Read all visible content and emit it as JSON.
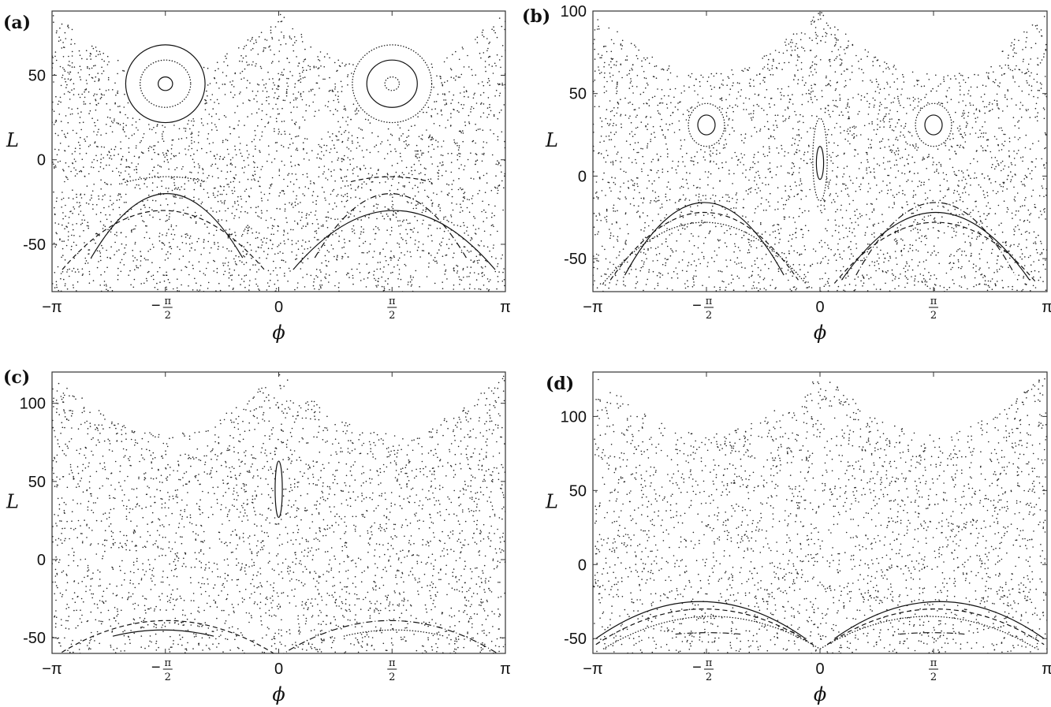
{
  "chart_data": [
    {
      "type": "scatter",
      "panel_label": "(a)",
      "xlabel": "ϕ",
      "ylabel": "L",
      "xlim": [
        -3.1416,
        3.1416
      ],
      "ylim": [
        -78,
        88
      ],
      "y_ticks": [
        -50,
        0,
        50
      ],
      "x_ticks": [
        {
          "value": -3.1416,
          "label": "−π"
        },
        {
          "value": -1.5708,
          "label": "−π/2"
        },
        {
          "value": 0,
          "label": "0"
        },
        {
          "value": 1.5708,
          "label": "π/2"
        },
        {
          "value": 3.1416,
          "label": "π"
        }
      ],
      "chaotic_dots": 3000,
      "islands": [
        {
          "cx": -1.5708,
          "cy": 45,
          "rx": 0.1,
          "ry": 4
        },
        {
          "cx": -1.5708,
          "cy": 45,
          "rx": 0.35,
          "ry": 14
        },
        {
          "cx": -1.5708,
          "cy": 45,
          "rx": 0.55,
          "ry": 23
        },
        {
          "cx": 1.5708,
          "cy": 45,
          "rx": 0.1,
          "ry": 4
        },
        {
          "cx": 1.5708,
          "cy": 45,
          "rx": 0.35,
          "ry": 14
        },
        {
          "cx": 1.5708,
          "cy": 45,
          "rx": 0.55,
          "ry": 23
        }
      ],
      "arches": [
        {
          "x1": -2.6,
          "x2": -0.5,
          "ytop": -20,
          "ybase": -58
        },
        {
          "x1": -3.0,
          "x2": -0.2,
          "ytop": -30,
          "ybase": -65
        },
        {
          "x1": -2.1,
          "x2": -1.0,
          "ytop": -10,
          "ybase": -13
        },
        {
          "x1": 0.5,
          "x2": 2.6,
          "ytop": -20,
          "ybase": -58
        },
        {
          "x1": 0.2,
          "x2": 3.0,
          "ytop": -30,
          "ybase": -65
        },
        {
          "x1": 1.0,
          "x2": 2.1,
          "ytop": -10,
          "ybase": -13
        }
      ]
    },
    {
      "type": "scatter",
      "panel_label": "(b)",
      "xlabel": "ϕ",
      "ylabel": "L",
      "xlim": [
        -3.1416,
        3.1416
      ],
      "ylim": [
        -70,
        100
      ],
      "y_ticks": [
        -50,
        0,
        50,
        100
      ],
      "x_ticks": [
        {
          "value": -3.1416,
          "label": "−π"
        },
        {
          "value": -1.5708,
          "label": "−π/2"
        },
        {
          "value": 0,
          "label": "0"
        },
        {
          "value": 1.5708,
          "label": "π/2"
        },
        {
          "value": 3.1416,
          "label": "π"
        }
      ],
      "chaotic_dots": 3000,
      "islands": [
        {
          "cx": -1.5708,
          "cy": 31,
          "rx": 0.12,
          "ry": 6
        },
        {
          "cx": -1.5708,
          "cy": 31,
          "rx": 0.25,
          "ry": 13
        },
        {
          "cx": 1.5708,
          "cy": 31,
          "rx": 0.12,
          "ry": 6
        },
        {
          "cx": 1.5708,
          "cy": 31,
          "rx": 0.25,
          "ry": 13
        },
        {
          "cx": 0,
          "cy": 8,
          "rx": 0.05,
          "ry": 10
        },
        {
          "cx": 0,
          "cy": 10,
          "rx": 0.1,
          "ry": 25
        }
      ],
      "arches": [
        {
          "x1": -2.7,
          "x2": -0.5,
          "ytop": -16,
          "ybase": -60
        },
        {
          "x1": -2.9,
          "x2": -0.3,
          "ytop": -22,
          "ybase": -63
        },
        {
          "x1": -3.0,
          "x2": -0.2,
          "ytop": -28,
          "ybase": -65
        },
        {
          "x1": 0.5,
          "x2": 2.7,
          "ytop": -16,
          "ybase": -60
        },
        {
          "x1": 0.3,
          "x2": 2.9,
          "ytop": -22,
          "ybase": -63
        },
        {
          "x1": 0.2,
          "x2": 3.0,
          "ytop": -28,
          "ybase": -65
        }
      ]
    },
    {
      "type": "scatter",
      "panel_label": "(c)",
      "xlabel": "ϕ",
      "ylabel": "L",
      "xlim": [
        -3.1416,
        3.1416
      ],
      "ylim": [
        -60,
        120
      ],
      "y_ticks": [
        -50,
        0,
        50,
        100
      ],
      "x_ticks": [
        {
          "value": -3.1416,
          "label": "−π"
        },
        {
          "value": -1.5708,
          "label": "−π/2"
        },
        {
          "value": 0,
          "label": "0"
        },
        {
          "value": 1.5708,
          "label": "π/2"
        },
        {
          "value": 3.1416,
          "label": "π"
        }
      ],
      "chaotic_dots": 3000,
      "islands": [
        {
          "cx": 0,
          "cy": 45,
          "rx": 0.05,
          "ry": 18
        },
        {
          "cx": 0,
          "cy": -30,
          "rx": 0.02,
          "ry": 1.5
        }
      ],
      "arches": [
        {
          "x1": -2.3,
          "x2": -0.9,
          "ytop": -45,
          "ybase": -49
        },
        {
          "x1": -3.1,
          "x2": 0.0,
          "ytop": -39,
          "ybase": -62
        },
        {
          "x1": 0.9,
          "x2": 2.3,
          "ytop": -45,
          "ybase": -49
        },
        {
          "x1": 0.0,
          "x2": 3.1,
          "ytop": -39,
          "ybase": -62
        }
      ]
    },
    {
      "type": "scatter",
      "panel_label": "(d)",
      "xlabel": "ϕ",
      "ylabel": "L",
      "xlim": [
        -3.1416,
        3.1416
      ],
      "ylim": [
        -60,
        130
      ],
      "y_ticks": [
        -50,
        0,
        50,
        100
      ],
      "x_ticks": [
        {
          "value": -3.1416,
          "label": "−π"
        },
        {
          "value": -1.5708,
          "label": "−π/2"
        },
        {
          "value": 0,
          "label": "0"
        },
        {
          "value": 1.5708,
          "label": "π/2"
        },
        {
          "value": 3.1416,
          "label": "π"
        }
      ],
      "chaotic_dots": 2800,
      "islands": [],
      "arches": [
        {
          "x1": -3.1,
          "x2": -0.2,
          "ytop": -25,
          "ybase": -50
        },
        {
          "x1": -3.1,
          "x2": -0.1,
          "ytop": -30,
          "ybase": -54
        },
        {
          "x1": -3.0,
          "x2": 0.0,
          "ytop": -35,
          "ybase": -57
        },
        {
          "x1": -2.0,
          "x2": -1.1,
          "ytop": -46,
          "ybase": -47
        },
        {
          "x1": 0.2,
          "x2": 3.1,
          "ytop": -25,
          "ybase": -50
        },
        {
          "x1": 0.1,
          "x2": 3.1,
          "ytop": -30,
          "ybase": -54
        },
        {
          "x1": 0.0,
          "x2": 3.0,
          "ytop": -35,
          "ybase": -57
        },
        {
          "x1": 1.1,
          "x2": 2.0,
          "ytop": -46,
          "ybase": -47
        }
      ]
    }
  ]
}
